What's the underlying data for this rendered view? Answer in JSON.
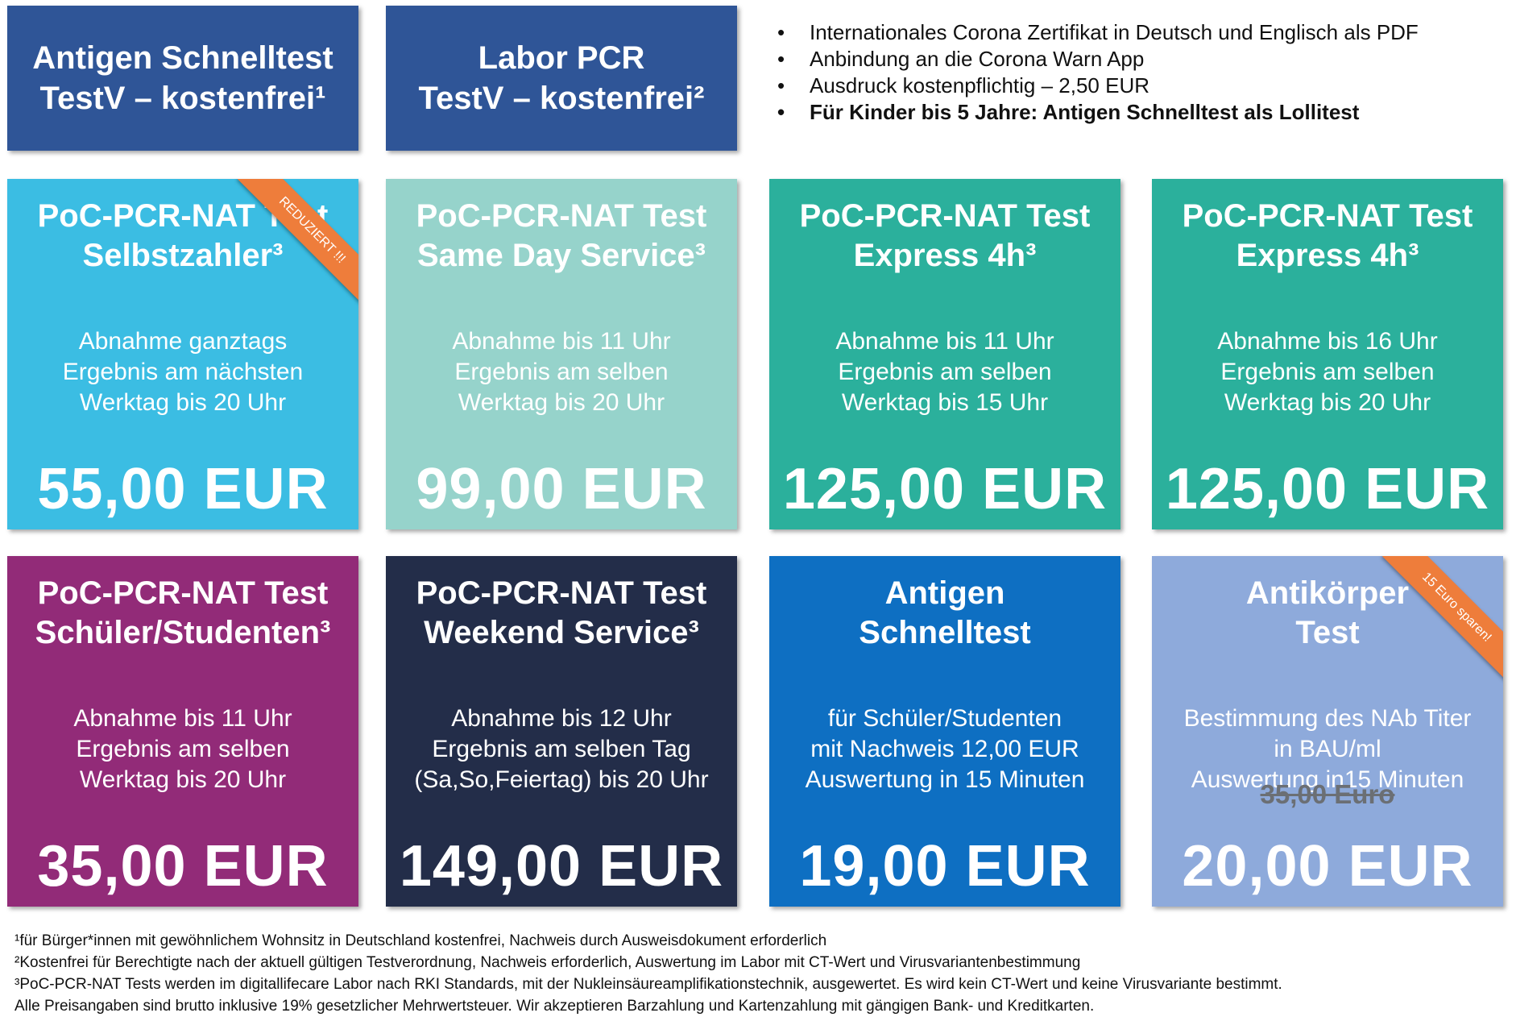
{
  "header_tiles": [
    {
      "line1": "Antigen Schnelltest",
      "line2": "TestV – kostenfrei¹",
      "color": "#2f5597"
    },
    {
      "line1": "Labor PCR",
      "line2": "TestV – kostenfrei²",
      "color": "#2f5597"
    }
  ],
  "info_bullets": [
    "Internationales Corona Zertifikat in Deutsch und Englisch als PDF",
    "Anbindung an die Corona Warn App",
    "Ausdruck kostenpflichtig – 2,50 EUR",
    "Für Kinder bis 5 Jahre: Antigen Schnelltest als Lollitest"
  ],
  "cards": [
    {
      "title1": "PoC-PCR-NAT Test",
      "title2": "Selbstzahler³",
      "desc1": "Abnahme ganztags",
      "desc2": "Ergebnis am nächsten",
      "desc3": "Werktag bis 20 Uhr",
      "price": "55,00 EUR",
      "ribbon": "REDUZIERT !!!",
      "color": "#3bbde3"
    },
    {
      "title1": "PoC-PCR-NAT Test",
      "title2": "Same Day Service³",
      "desc1": "Abnahme bis 11 Uhr",
      "desc2": "Ergebnis am selben",
      "desc3": "Werktag bis 20 Uhr",
      "price": "99,00 EUR",
      "color": "#96d3cb"
    },
    {
      "title1": "PoC-PCR-NAT Test",
      "title2": "Express 4h³",
      "desc1": "Abnahme bis 11 Uhr",
      "desc2": "Ergebnis am selben",
      "desc3": "Werktag bis 15 Uhr",
      "price": "125,00 EUR",
      "color": "#2bb09c"
    },
    {
      "title1": "PoC-PCR-NAT Test",
      "title2": "Express 4h³",
      "desc1": "Abnahme bis 16 Uhr",
      "desc2": "Ergebnis am selben",
      "desc3": "Werktag bis 20 Uhr",
      "price": "125,00 EUR",
      "color": "#2bb09c"
    },
    {
      "title1": "PoC-PCR-NAT Test",
      "title2": "Schüler/Studenten³",
      "desc1": "Abnahme bis 11 Uhr",
      "desc2": "Ergebnis am selben",
      "desc3": "Werktag bis 20 Uhr",
      "price": "35,00 EUR",
      "color": "#922b78"
    },
    {
      "title1": "PoC-PCR-NAT Test",
      "title2": "Weekend Service³",
      "desc1": "Abnahme bis 12 Uhr",
      "desc2": "Ergebnis am selben Tag",
      "desc3": "(Sa,So,Feiertag) bis 20 Uhr",
      "price": "149,00 EUR",
      "color": "#232d49"
    },
    {
      "title1": "Antigen",
      "title2": "Schnelltest",
      "desc1": "für Schüler/Studenten",
      "desc2": "mit Nachweis 12,00 EUR",
      "desc3": "Auswertung in 15 Minuten",
      "price": "19,00 EUR",
      "color": "#0e6fc2"
    },
    {
      "title1": "Antikörper",
      "title2": "Test",
      "desc1": "Bestimmung des NAb Titer",
      "desc2": "in BAU/ml",
      "desc3": "Auswertung in15 Minuten",
      "old_price": "35,00 Euro",
      "price": "20,00 EUR",
      "ribbon": "15 Euro sparen!",
      "color": "#8eaadb"
    }
  ],
  "footnotes": [
    "¹für Bürger*innen mit gewöhnlichem Wohnsitz in Deutschland kostenfrei, Nachweis durch Ausweisdokument erforderlich",
    "²Kostenfrei für Berechtigte nach der aktuell gültigen Testverordnung, Nachweis erforderlich, Auswertung im Labor mit CT-Wert und Virusvariantenbestimmung",
    "³PoC-PCR-NAT Tests werden im digitallifecare Labor nach RKI Standards, mit der Nukleinsäureamplifikationstechnik, ausgewertet. Es wird kein CT-Wert und keine Virusvariante bestimmt.",
    "Alle Preisangaben sind brutto inklusive 19% gesetzlicher Mehrwertsteuer. Wir akzeptieren Barzahlung und Kartenzahlung mit gängigen Bank- und Kreditkarten."
  ]
}
